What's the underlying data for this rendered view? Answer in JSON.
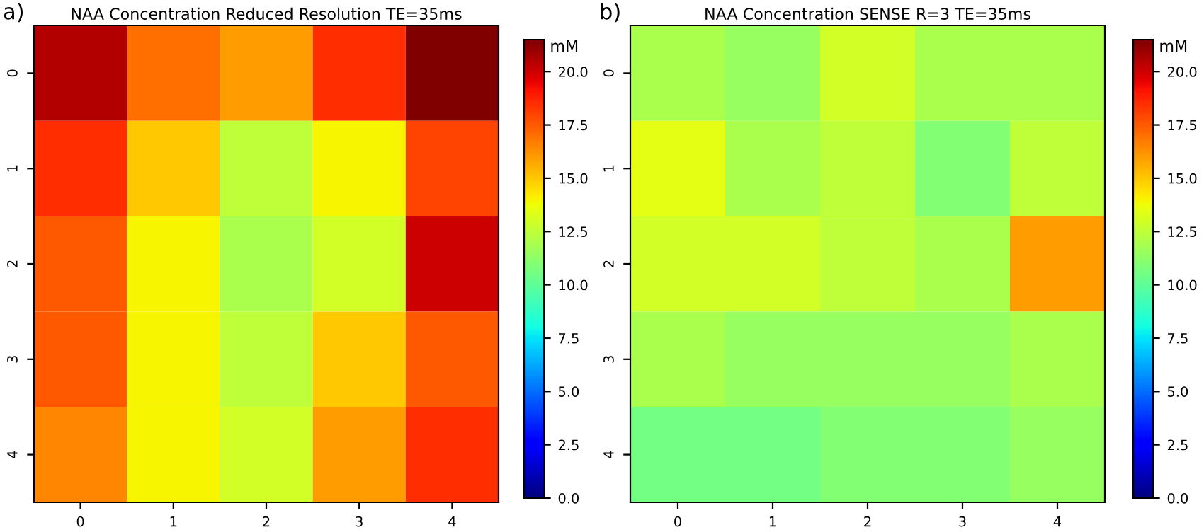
{
  "chart_data": [
    {
      "type": "heatmap",
      "title": "NAA Concentration Reduced Resolution TE=35ms",
      "annotations": [
        "a)"
      ],
      "categories": [
        "0",
        "1",
        "2",
        "3",
        "4"
      ],
      "y_categories": [
        "0",
        "1",
        "2",
        "3",
        "4"
      ],
      "cells": [
        [
          20.5,
          17,
          16,
          18.5,
          21.5
        ],
        [
          18.5,
          15,
          12.5,
          14,
          18
        ],
        [
          17.5,
          14,
          12,
          13,
          20
        ],
        [
          17.5,
          14,
          12.5,
          15,
          17.5
        ],
        [
          16.5,
          14,
          13,
          16,
          18.5
        ]
      ],
      "clim": [
        0,
        21.5
      ],
      "cticks": [
        {
          "value": 0,
          "label": "0.0"
        },
        2.5,
        {
          "value": 5,
          "label": "5.0"
        },
        7.5,
        {
          "value": 10,
          "label": "10.0"
        },
        12.5,
        {
          "value": 15,
          "label": "15.0"
        },
        17.5,
        {
          "value": 20,
          "label": "20.0"
        }
      ],
      "clabel": "mM"
    },
    {
      "type": "heatmap",
      "title": "NAA Concentration SENSE R=3 TE=35ms",
      "annotations": [
        "b)"
      ],
      "categories": [
        "0",
        "1",
        "2",
        "3",
        "4"
      ],
      "y_categories": [
        "0",
        "1",
        "2",
        "3",
        "4"
      ],
      "cells": [
        [
          12,
          11.5,
          13,
          12,
          12
        ],
        [
          13.5,
          12,
          12.5,
          11,
          12.5
        ],
        [
          13,
          13,
          12.5,
          12,
          16
        ],
        [
          12,
          11.5,
          11.5,
          11.5,
          12
        ],
        [
          10.5,
          10.5,
          11,
          11,
          11.5
        ]
      ],
      "clim": [
        0,
        21.5
      ],
      "cticks": [
        {
          "value": 0,
          "label": "0.0"
        },
        2.5,
        {
          "value": 5,
          "label": "5.0"
        },
        7.5,
        {
          "value": 10,
          "label": "10.0"
        },
        12.5,
        {
          "value": 15,
          "label": "15.0"
        },
        17.5,
        {
          "value": 20,
          "label": "20.0"
        }
      ],
      "clabel": "mM"
    }
  ]
}
